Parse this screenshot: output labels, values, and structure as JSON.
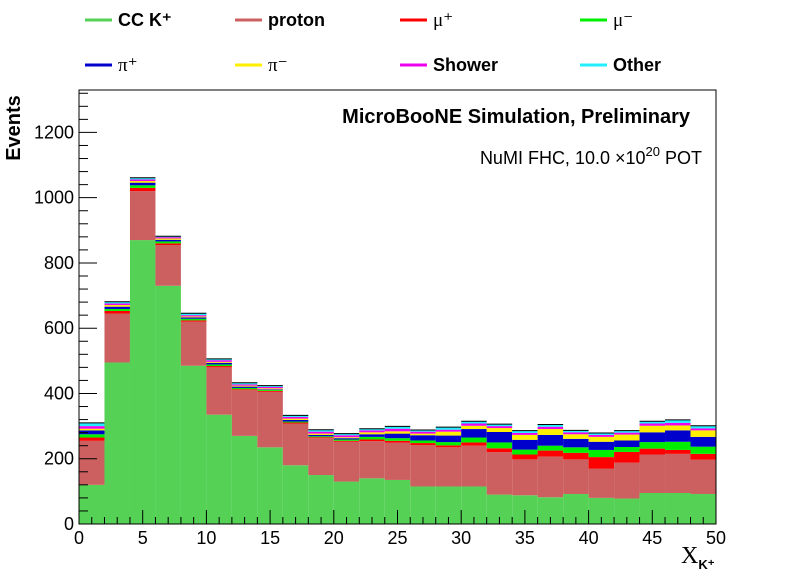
{
  "chart_data": {
    "type": "bar",
    "stacked": true,
    "histogram": true,
    "title": "MicroBooNE Simulation, Preliminary",
    "subtitle": "NuMI FHC, 10.0 ×10^20 POT",
    "subtitle_parts": {
      "prefix": "NuMI FHC, 10.0  ×10",
      "exponent": "20",
      "suffix": " POT"
    },
    "xlabel": "X",
    "xlabel_sub": "K⁺",
    "ylabel": "Events",
    "xlim": [
      0,
      50
    ],
    "ylim": [
      0,
      1330
    ],
    "xticks": [
      "0",
      "5",
      "10",
      "15",
      "20",
      "25",
      "30",
      "35",
      "40",
      "45",
      "50"
    ],
    "yticks": [
      "0",
      "200",
      "400",
      "600",
      "800",
      "1000",
      "1200"
    ],
    "bin_edges": [
      0,
      2,
      4,
      6,
      8,
      10,
      12,
      14,
      16,
      18,
      20,
      22,
      24,
      26,
      28,
      30,
      32,
      34,
      36,
      38,
      40,
      42,
      44,
      46,
      48,
      50
    ],
    "legend_placement": "top, outside plot",
    "series": [
      {
        "name": "CC K⁺",
        "color": "#55d155",
        "values": [
          120,
          495,
          870,
          730,
          485,
          335,
          270,
          235,
          180,
          150,
          130,
          140,
          135,
          115,
          115,
          115,
          90,
          88,
          82,
          92,
          80,
          78,
          95,
          95,
          92
        ]
      },
      {
        "name": "proton",
        "color": "#cc6060",
        "values": [
          135,
          150,
          150,
          125,
          135,
          145,
          140,
          170,
          128,
          113,
          122,
          114,
          114,
          127,
          120,
          125,
          130,
          110,
          125,
          106,
          90,
          110,
          118,
          120,
          105
        ]
      },
      {
        "name": "μ⁺",
        "color": "#ff0000",
        "values": [
          10,
          8,
          10,
          5,
          4,
          4,
          3,
          3,
          3,
          3,
          3,
          5,
          6,
          6,
          6,
          10,
          12,
          15,
          18,
          20,
          35,
          33,
          18,
          12,
          18
        ]
      },
      {
        "name": "μ⁻",
        "color": "#00ee00",
        "values": [
          10,
          6,
          8,
          6,
          5,
          5,
          4,
          3,
          3,
          3,
          4,
          8,
          8,
          8,
          10,
          15,
          18,
          15,
          15,
          17,
          22,
          15,
          20,
          25,
          22
        ]
      },
      {
        "name": "π⁺",
        "color": "#0000cc",
        "values": [
          12,
          7,
          8,
          5,
          4,
          5,
          4,
          2,
          5,
          4,
          4,
          8,
          14,
          16,
          20,
          26,
          32,
          30,
          33,
          26,
          25,
          20,
          30,
          35,
          30
        ]
      },
      {
        "name": "π⁻",
        "color": "#ffee00",
        "values": [
          5,
          5,
          5,
          4,
          3,
          3,
          3,
          3,
          4,
          4,
          3,
          6,
          7,
          5,
          12,
          10,
          12,
          15,
          18,
          14,
          15,
          18,
          20,
          15,
          20
        ]
      },
      {
        "name": "Shower",
        "color": "#ee00ee",
        "values": [
          8,
          5,
          5,
          4,
          4,
          5,
          4,
          4,
          5,
          6,
          6,
          6,
          8,
          6,
          6,
          7,
          6,
          6,
          7,
          6,
          6,
          6,
          7,
          8,
          6
        ]
      },
      {
        "name": "Other",
        "color": "#22eeff",
        "values": [
          10,
          5,
          5,
          3,
          6,
          4,
          5,
          4,
          5,
          6,
          5,
          5,
          7,
          5,
          8,
          7,
          6,
          7,
          7,
          6,
          6,
          6,
          7,
          9,
          8
        ]
      }
    ],
    "legend_rows": [
      [
        "CC K⁺",
        "proton",
        "μ⁺",
        "μ⁻"
      ],
      [
        "π⁺",
        "π⁻",
        "Shower",
        "Other"
      ]
    ]
  }
}
